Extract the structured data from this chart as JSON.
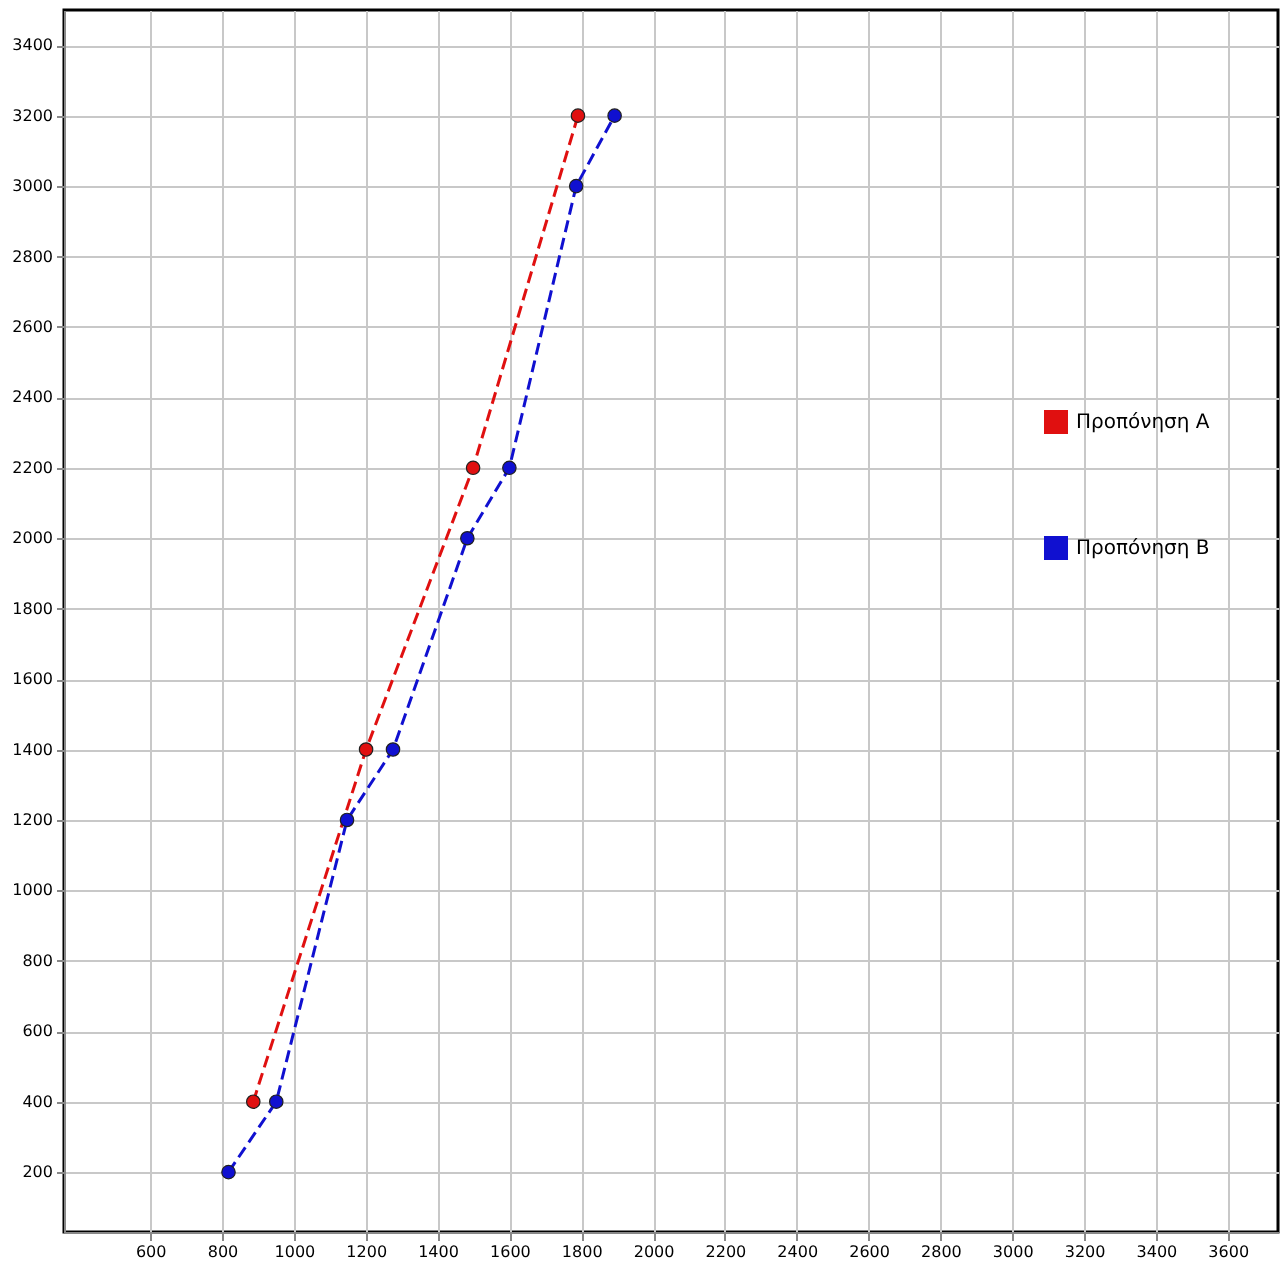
{
  "chart_data": {
    "type": "line",
    "xlim": [
      360,
      3740
    ],
    "ylim": [
      30,
      3500
    ],
    "xticks": [
      600,
      800,
      1000,
      1200,
      1400,
      1600,
      1800,
      2000,
      2200,
      2400,
      2600,
      2800,
      3000,
      3200,
      3400,
      3600
    ],
    "yticks": [
      200,
      400,
      600,
      800,
      1000,
      1200,
      1400,
      1600,
      1800,
      2000,
      2200,
      2400,
      2600,
      2800,
      3000,
      3200,
      3400
    ],
    "grid": true,
    "legend": "right",
    "marker": "circle",
    "line_style": "dashed",
    "series": [
      {
        "name": "Προπόνηση Α",
        "color": "#e01010",
        "x": [
          887,
          1201,
          1499,
          1791
        ],
        "values": [
          400,
          1400,
          2200,
          3200
        ]
      },
      {
        "name": "Προπόνηση Β",
        "color": "#1010d0",
        "x": [
          818,
          951,
          1148,
          1276,
          1483,
          1600,
          1786,
          1893
        ],
        "values": [
          200,
          400,
          1200,
          1400,
          2000,
          2200,
          3000,
          3200
        ]
      }
    ]
  }
}
